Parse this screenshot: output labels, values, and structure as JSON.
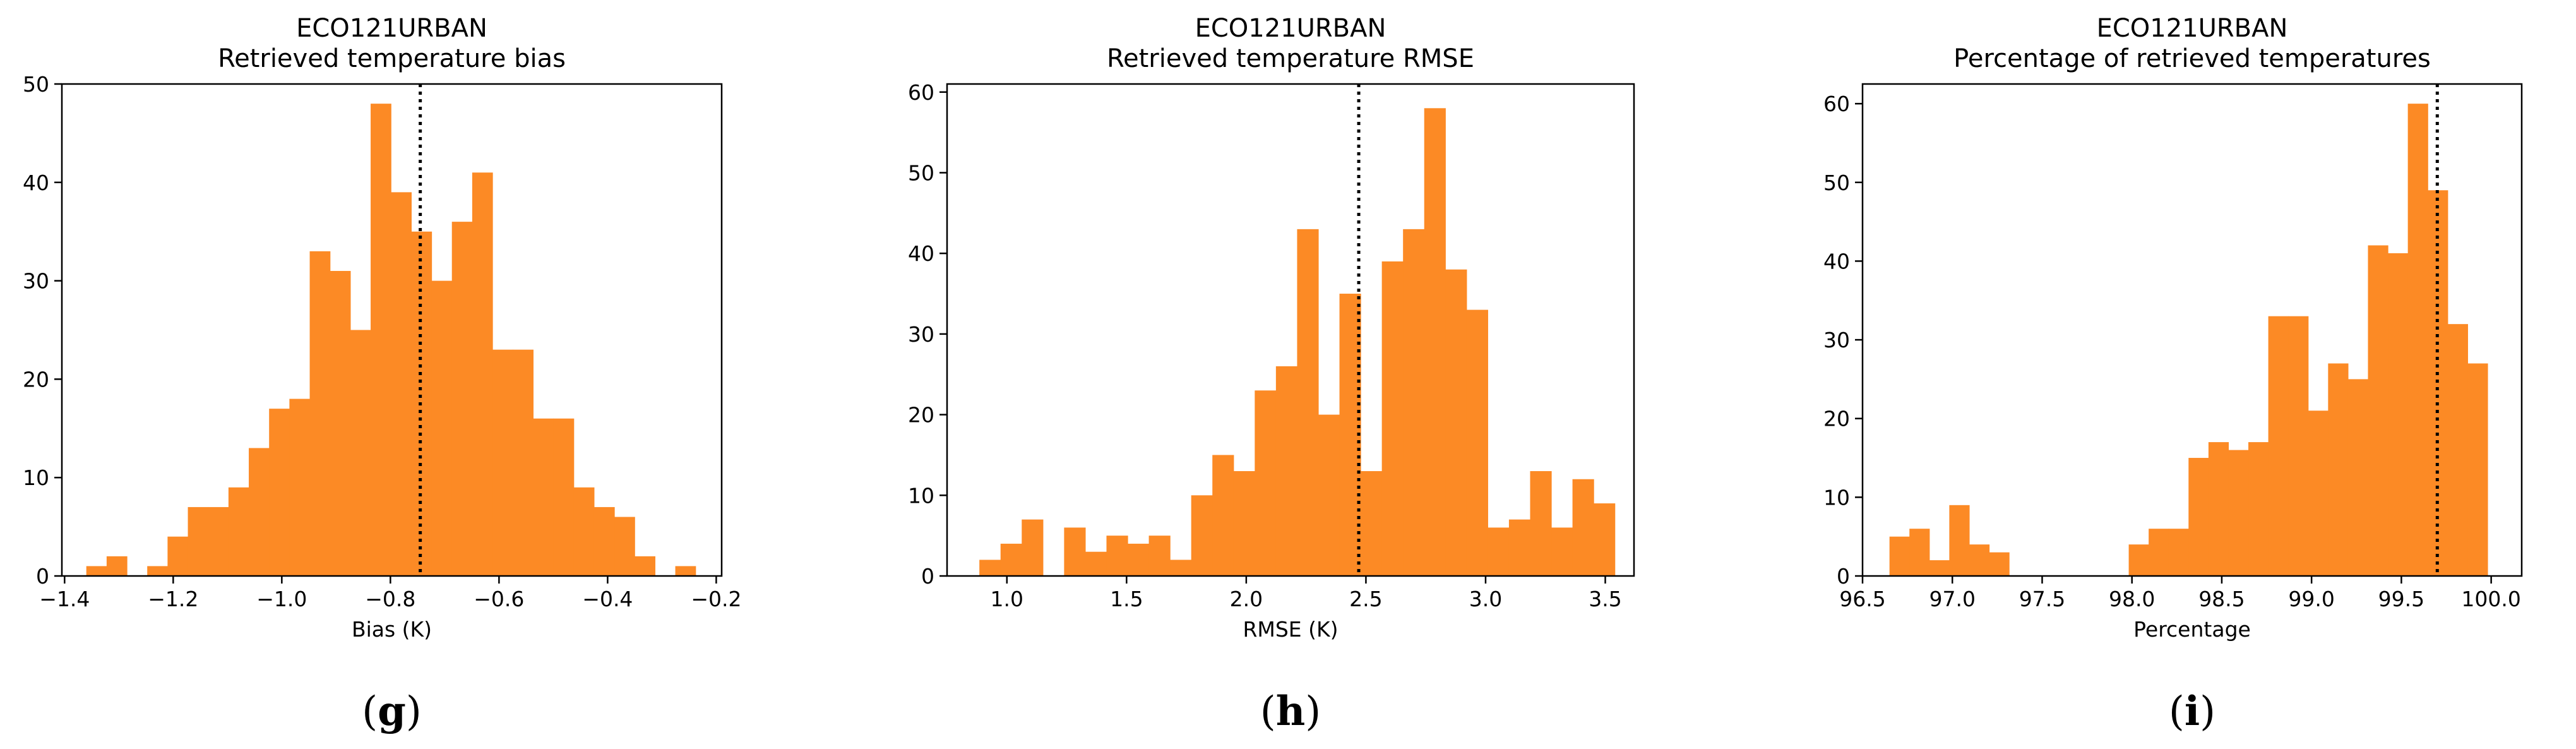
{
  "chart_data": [
    {
      "type": "bar",
      "title": "ECO121URBAN",
      "subtitle": "Retrieved temperature bias",
      "xlabel": "Bias (K)",
      "panel_label": "g",
      "xlim": [
        -1.405,
        -0.19
      ],
      "ylim": [
        0,
        50
      ],
      "xticks": [
        -1.4,
        -1.2,
        -1.0,
        -0.8,
        -0.6,
        -0.4,
        -0.2
      ],
      "xtick_labels": [
        "−1.4",
        "−1.2",
        "−1.0",
        "−0.8",
        "−0.6",
        "−0.4",
        "−0.2"
      ],
      "yticks": [
        0,
        10,
        20,
        30,
        40,
        50
      ],
      "mean_line": -0.745,
      "bar_color": "#fc8a25",
      "bin_start": -1.36,
      "bin_width": 0.0374,
      "values": [
        1,
        2,
        0,
        1,
        4,
        7,
        7,
        9,
        13,
        17,
        18,
        33,
        31,
        25,
        48,
        39,
        35,
        30,
        36,
        41,
        23,
        23,
        16,
        16,
        9,
        7,
        6,
        2,
        0,
        1
      ]
    },
    {
      "type": "bar",
      "title": "ECO121URBAN",
      "subtitle": "Retrieved temperature RMSE",
      "xlabel": "RMSE (K)",
      "panel_label": "h",
      "xlim": [
        0.75,
        3.62
      ],
      "ylim": [
        0,
        61
      ],
      "xticks": [
        1.0,
        1.5,
        2.0,
        2.5,
        3.0,
        3.5
      ],
      "xtick_labels": [
        "1.0",
        "1.5",
        "2.0",
        "2.5",
        "3.0",
        "3.5"
      ],
      "yticks": [
        0,
        10,
        20,
        30,
        40,
        50,
        60
      ],
      "mean_line": 2.47,
      "bar_color": "#fc8a25",
      "bin_start": 0.885,
      "bin_width": 0.0885,
      "values": [
        2,
        4,
        7,
        0,
        6,
        3,
        5,
        4,
        5,
        2,
        10,
        15,
        13,
        23,
        26,
        43,
        20,
        35,
        13,
        39,
        43,
        58,
        38,
        33,
        6,
        7,
        13,
        6,
        12,
        9
      ]
    },
    {
      "type": "bar",
      "title": "ECO121URBAN",
      "subtitle": "Percentage of retrieved temperatures",
      "xlabel": "Percentage",
      "panel_label": "i",
      "xlim": [
        96.5,
        100.17
      ],
      "ylim": [
        0,
        62.5
      ],
      "xticks": [
        96.5,
        97.0,
        97.5,
        98.0,
        98.5,
        99.0,
        99.5,
        100.0
      ],
      "xtick_labels": [
        "96.5",
        "97.0",
        "97.5",
        "98.0",
        "98.5",
        "99.0",
        "99.5",
        "100.0"
      ],
      "yticks": [
        0,
        10,
        20,
        30,
        40,
        50,
        60
      ],
      "mean_line": 99.7,
      "bar_color": "#fc8a25",
      "bin_start": 96.65,
      "bin_width": 0.111,
      "values": [
        5,
        6,
        2,
        9,
        4,
        3,
        0,
        0,
        0,
        0,
        0,
        0,
        4,
        6,
        6,
        15,
        17,
        16,
        17,
        33,
        33,
        21,
        27,
        25,
        42,
        41,
        60,
        49,
        32,
        27
      ]
    }
  ]
}
